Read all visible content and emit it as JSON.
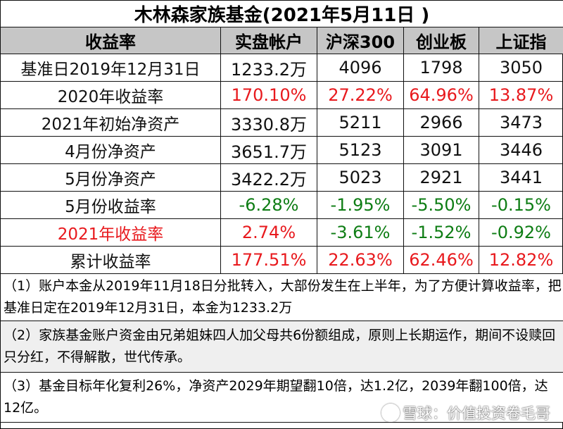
{
  "title": "木林森家族基金(2021年5月11日 )",
  "headers": [
    "收益率",
    "实盘帐户",
    "沪深300",
    "创业板",
    "上证指"
  ],
  "rows": [
    {
      "label": "基准日2019年12月31日",
      "label_color": "black",
      "values": [
        "1233.2万",
        "4096",
        "1798",
        "3050"
      ],
      "colors": [
        "black",
        "black",
        "black",
        "black"
      ]
    },
    {
      "label": "2020年收益率",
      "label_color": "black",
      "values": [
        "170.10%",
        "27.22%",
        "64.96%",
        "13.87%"
      ],
      "colors": [
        "red",
        "red",
        "red",
        "red"
      ]
    },
    {
      "label": "2021年初始净资产",
      "label_color": "black",
      "values": [
        "3330.8万",
        "5211",
        "2966",
        "3473"
      ],
      "colors": [
        "black",
        "black",
        "black",
        "black"
      ]
    },
    {
      "label": "4月份净资产",
      "label_color": "black",
      "values": [
        "3651.7万",
        "5123",
        "3091",
        "3446"
      ],
      "colors": [
        "black",
        "black",
        "black",
        "black"
      ]
    },
    {
      "label": "5月份净资产",
      "label_color": "black",
      "values": [
        "3422.2万",
        "5023",
        "2921",
        "3441"
      ],
      "colors": [
        "black",
        "black",
        "black",
        "black"
      ]
    },
    {
      "label": "5月份收益率",
      "label_color": "black",
      "values": [
        "-6.28%",
        "-1.95%",
        "-5.50%",
        "-0.15%"
      ],
      "colors": [
        "green",
        "green",
        "green",
        "green"
      ]
    },
    {
      "label": "2021年收益率",
      "label_color": "red",
      "values": [
        "2.74%",
        "-3.61%",
        "-1.52%",
        "-0.92%"
      ],
      "colors": [
        "red",
        "green",
        "green",
        "green"
      ]
    },
    {
      "label": "累计收益率",
      "label_color": "black",
      "values": [
        "177.51%",
        "22.63%",
        "62.46%",
        "12.82%"
      ],
      "colors": [
        "red",
        "red",
        "red",
        "red"
      ]
    }
  ],
  "notes": [
    "（1）账户本金从2019年11月18日分批转入，大部份发生在上半年，为了方便计算收益率，把基准日定在2019年12月31日，本金为1233.2万",
    "（2）家族基金账户资金由兄弟姐妹四人加父母共6份额组成，原则上长期运作，期间不设赎回只分红，不得解散，世代传承。",
    "（3）基金目标年化复利26%，净资产2029年期望翻10倍，达1.2亿，2039年翻100倍，达12亿。"
  ],
  "colors": {
    "red": "#e8191d",
    "green": "#0e7d14",
    "header_bg": "#c6c6c6"
  },
  "watermark": "雪球：价值投资卷毛哥",
  "watermark_icon": "snowball-logo-icon"
}
